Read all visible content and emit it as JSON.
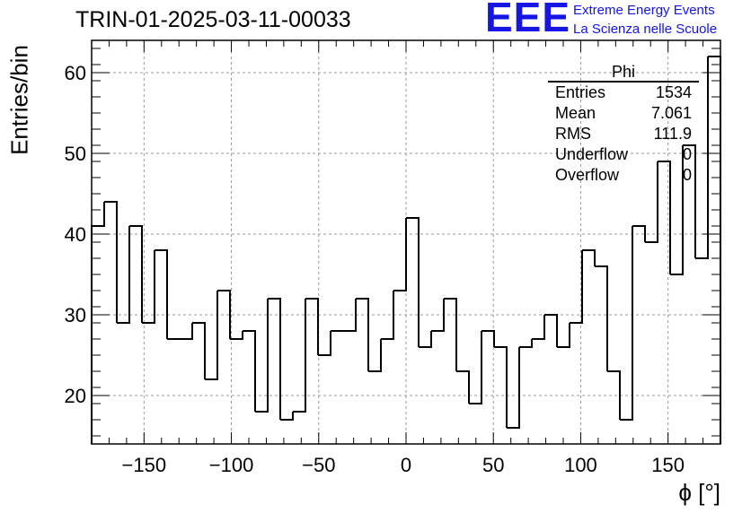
{
  "header": {
    "title": "TRIN-01-2025-03-11-00033",
    "logo_text": "EEE",
    "logo_line1": "Extreme Energy Events",
    "logo_line2": "La Scienza nelle Scuole",
    "accent_color": "#1515e6"
  },
  "stats_box": {
    "title": "Phi",
    "rows": [
      {
        "label": "Entries",
        "value": "1534"
      },
      {
        "label": "Mean",
        "value": "7.061"
      },
      {
        "label": "RMS",
        "value": "111.9"
      },
      {
        "label": "Underflow",
        "value": "0"
      },
      {
        "label": "Overflow",
        "value": "0"
      }
    ]
  },
  "chart_data": {
    "type": "histogram",
    "title": "TRIN-01-2025-03-11-00033",
    "xlabel": "ϕ [°]",
    "ylabel": "Entries/bin",
    "xlim": [
      -180,
      180
    ],
    "ylim": [
      14,
      64
    ],
    "grid": true,
    "bin_width": 7.2,
    "bin_edges_start": -180,
    "xticks": [
      -150,
      -100,
      -50,
      0,
      50,
      100,
      150
    ],
    "xtick_labels": [
      "−150",
      "−100",
      "−50",
      "0",
      "50",
      "100",
      "150"
    ],
    "yticks": [
      20,
      30,
      40,
      50,
      60
    ],
    "ytick_labels": [
      "20",
      "30",
      "40",
      "50",
      "60"
    ],
    "values": [
      41,
      44,
      29,
      41,
      29,
      38,
      27,
      27,
      29,
      22,
      33,
      27,
      28,
      18,
      32,
      17,
      18,
      32,
      25,
      28,
      28,
      32,
      23,
      27,
      33,
      42,
      26,
      28,
      32,
      23,
      19,
      28,
      26,
      16,
      26,
      27,
      30,
      26,
      29,
      38,
      36,
      23,
      17,
      41,
      39,
      49,
      35,
      51,
      37,
      62
    ],
    "line_color": "#000000"
  }
}
